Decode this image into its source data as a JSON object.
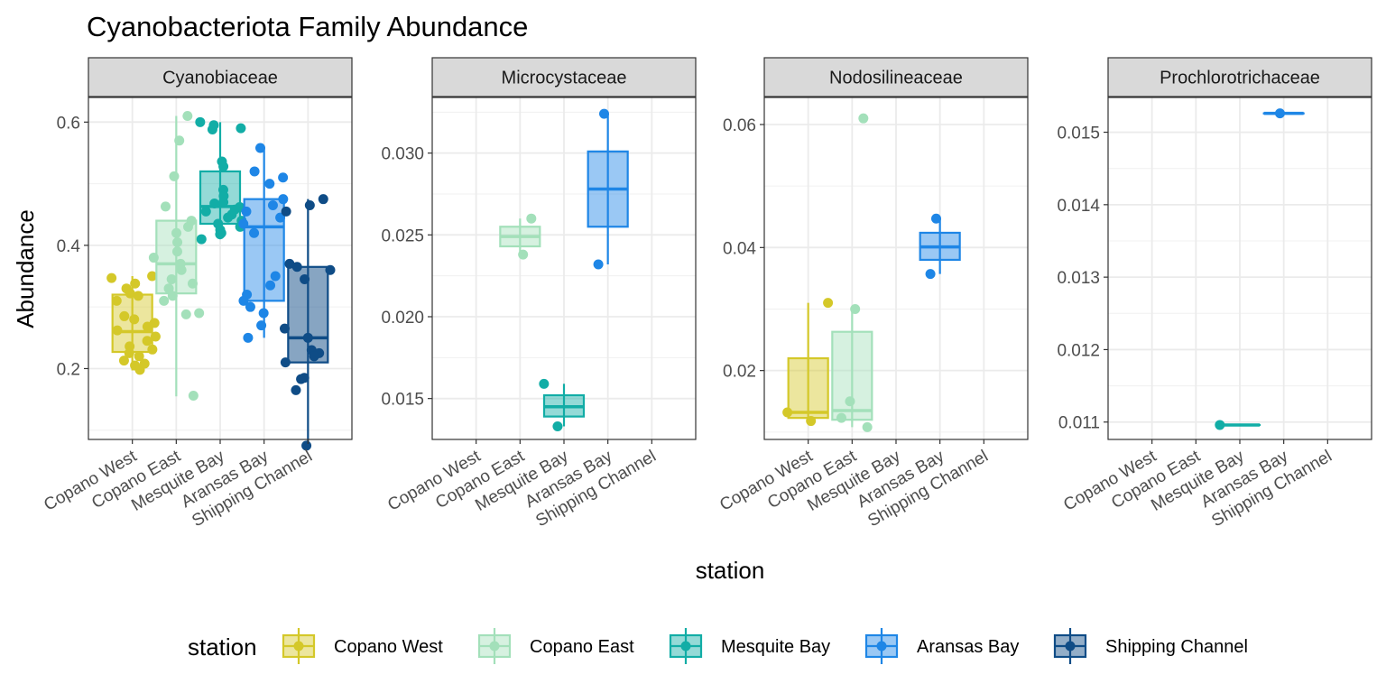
{
  "chart_data": {
    "type": "box",
    "title": "Cyanobacteriota Family Abundance",
    "xlabel": "station",
    "ylabel": "Abundance",
    "grid": true,
    "legend": {
      "title": "station",
      "placement": "bottom",
      "entries": [
        {
          "name": "Copano West",
          "color": "#D4C829"
        },
        {
          "name": "Copano East",
          "color": "#A3E0BA"
        },
        {
          "name": "Mesquite Bay",
          "color": "#12ADA6"
        },
        {
          "name": "Aransas Bay",
          "color": "#1E86E6"
        },
        {
          "name": "Shipping Channel",
          "color": "#0F4C86"
        }
      ]
    },
    "categories": [
      "Copano West",
      "Copano East",
      "Mesquite Bay",
      "Aransas Bay",
      "Shipping Channel"
    ],
    "panels": [
      {
        "facet": "Cyanobiaceae",
        "ylim": [
          0.085,
          0.64
        ],
        "yticks": [
          0.2,
          0.4,
          0.6
        ],
        "ytick_labels": [
          "0.2",
          "0.4",
          "0.6"
        ],
        "boxes": [
          {
            "station": "Copano West",
            "min": 0.197,
            "q1": 0.227,
            "median": 0.26,
            "q3": 0.32,
            "max": 0.35,
            "points": [
              0.35,
              0.347,
              0.338,
              0.33,
              0.322,
              0.318,
              0.31,
              0.285,
              0.28,
              0.274,
              0.268,
              0.262,
              0.252,
              0.245,
              0.236,
              0.231,
              0.225,
              0.22,
              0.213,
              0.208,
              0.205,
              0.198
            ]
          },
          {
            "station": "Copano East",
            "min": 0.155,
            "q1": 0.322,
            "median": 0.37,
            "q3": 0.44,
            "max": 0.61,
            "points": [
              0.61,
              0.57,
              0.512,
              0.463,
              0.44,
              0.43,
              0.42,
              0.405,
              0.39,
              0.38,
              0.37,
              0.36,
              0.345,
              0.338,
              0.33,
              0.318,
              0.31,
              0.29,
              0.288,
              0.156
            ]
          },
          {
            "station": "Mesquite Bay",
            "min": 0.41,
            "q1": 0.435,
            "median": 0.463,
            "q3": 0.52,
            "max": 0.6,
            "points": [
              0.6,
              0.595,
              0.588,
              0.59,
              0.536,
              0.528,
              0.49,
              0.48,
              0.47,
              0.468,
              0.462,
              0.458,
              0.455,
              0.45,
              0.445,
              0.44,
              0.435,
              0.43,
              0.425,
              0.42,
              0.418,
              0.41
            ]
          },
          {
            "station": "Aransas Bay",
            "min": 0.25,
            "q1": 0.31,
            "median": 0.43,
            "q3": 0.475,
            "max": 0.558,
            "points": [
              0.558,
              0.52,
              0.51,
              0.5,
              0.475,
              0.465,
              0.455,
              0.445,
              0.435,
              0.42,
              0.35,
              0.335,
              0.32,
              0.31,
              0.3,
              0.29,
              0.27,
              0.25
            ]
          },
          {
            "station": "Shipping Channel",
            "min": 0.078,
            "q1": 0.21,
            "median": 0.25,
            "q3": 0.365,
            "max": 0.475,
            "points": [
              0.475,
              0.465,
              0.455,
              0.37,
              0.365,
              0.36,
              0.345,
              0.265,
              0.25,
              0.23,
              0.225,
              0.22,
              0.21,
              0.185,
              0.183,
              0.165,
              0.075
            ]
          }
        ]
      },
      {
        "facet": "Microcystaceae",
        "ylim": [
          0.0125,
          0.0334
        ],
        "yticks": [
          0.015,
          0.02,
          0.025,
          0.03
        ],
        "ytick_labels": [
          "0.015",
          "0.020",
          "0.025",
          "0.030"
        ],
        "boxes": [
          {
            "station": "Copano East",
            "min": 0.0238,
            "q1": 0.0243,
            "median": 0.0249,
            "q3": 0.0255,
            "max": 0.026,
            "points": [
              0.026,
              0.0238
            ]
          },
          {
            "station": "Mesquite Bay",
            "min": 0.0133,
            "q1": 0.0139,
            "median": 0.0145,
            "q3": 0.0152,
            "max": 0.0159,
            "points": [
              0.0159,
              0.0133
            ]
          },
          {
            "station": "Aransas Bay",
            "min": 0.0232,
            "q1": 0.0255,
            "median": 0.0278,
            "q3": 0.0301,
            "max": 0.0324,
            "points": [
              0.0324,
              0.0232
            ]
          }
        ]
      },
      {
        "facet": "Nodosilineaceae",
        "ylim": [
          0.0088,
          0.0644
        ],
        "yticks": [
          0.02,
          0.04,
          0.06
        ],
        "ytick_labels": [
          "0.02",
          "0.04",
          "0.06"
        ],
        "boxes": [
          {
            "station": "Copano West",
            "min": 0.0118,
            "q1": 0.0123,
            "median": 0.0132,
            "q3": 0.022,
            "max": 0.031,
            "points": [
              0.031,
              0.0132,
              0.0118
            ]
          },
          {
            "station": "Copano East",
            "min": 0.0108,
            "q1": 0.012,
            "median": 0.0135,
            "q3": 0.0263,
            "max": 0.03,
            "points": [
              0.061,
              0.03,
              0.015,
              0.0123,
              0.0108
            ]
          },
          {
            "station": "Aransas Bay",
            "min": 0.0357,
            "q1": 0.038,
            "median": 0.0401,
            "q3": 0.0424,
            "max": 0.0447,
            "points": [
              0.0447,
              0.0357
            ]
          }
        ]
      },
      {
        "facet": "Prochlorotrichaceae",
        "ylim": [
          0.01076,
          0.01548
        ],
        "yticks": [
          0.011,
          0.012,
          0.013,
          0.014,
          0.015
        ],
        "ytick_labels": [
          "0.011",
          "0.012",
          "0.013",
          "0.014",
          "0.015"
        ],
        "boxes": [
          {
            "station": "Mesquite Bay",
            "min": 0.01096,
            "q1": 0.01096,
            "median": 0.01096,
            "q3": 0.01096,
            "max": 0.01096,
            "points": [
              0.01096
            ]
          },
          {
            "station": "Aransas Bay",
            "min": 0.01526,
            "q1": 0.01526,
            "median": 0.01526,
            "q3": 0.01526,
            "max": 0.01526,
            "points": [
              0.01526
            ]
          }
        ]
      }
    ]
  }
}
